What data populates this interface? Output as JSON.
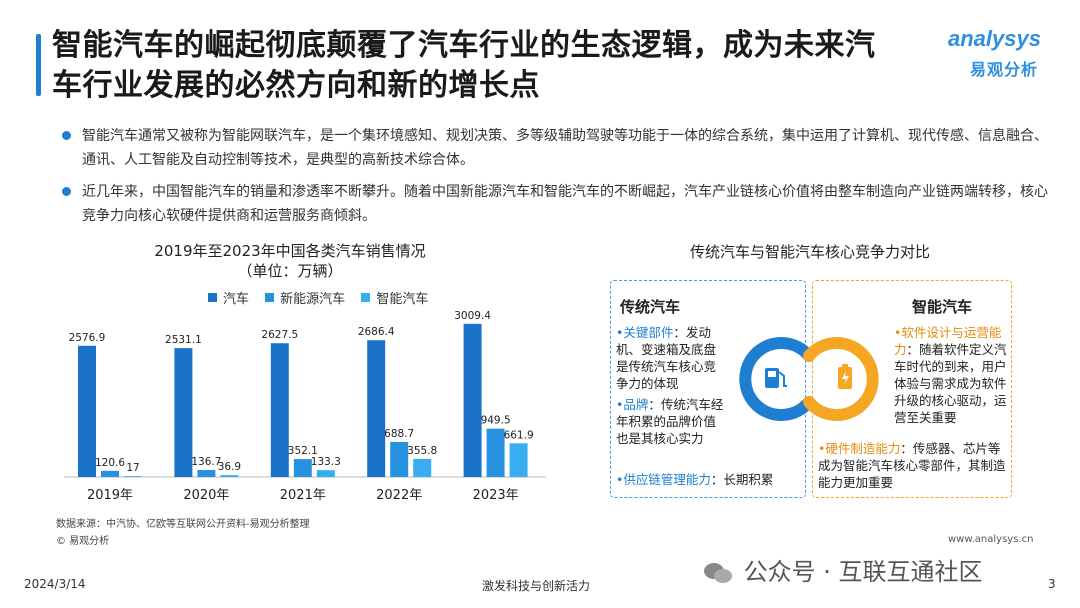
{
  "header": {
    "title_line1": "智能汽车的崛起彻底颠覆了汽车行业的生态逻辑，成为未来汽",
    "title_line2": "车行业发展的必然方向和新的增长点",
    "logo_en": "analysys",
    "logo_cn": "易观分析",
    "brand_color": "#1e7fd2"
  },
  "bullets": [
    {
      "text": "智能汽车通常又被称为智能网联汽车，是一个集环境感知、规划决策、多等级辅助驾驶等功能于一体的综合系统，集中运用了计算机、现代传感、信息融合、通讯、人工智能及自动控制等技术，是典型的高新技术综合体。"
    },
    {
      "text": "近几年来，中国智能汽车的销量和渗透率不断攀升。随着中国新能源汽车和智能汽车的不断崛起，汽车产业链核心价值将由整车制造向产业链两端转移，核心竞争力向核心软硬件提供商和运营服务商倾斜。"
    }
  ],
  "chart_data": {
    "type": "bar",
    "title": "2019年至2023年中国各类汽车销售情况",
    "subtitle": "（单位：万辆）",
    "categories": [
      "2019年",
      "2020年",
      "2021年",
      "2022年",
      "2023年"
    ],
    "series": [
      {
        "name": "汽车",
        "color": "#1a73c8",
        "values": [
          2576.9,
          2531.1,
          2627.5,
          2686.4,
          3009.4
        ]
      },
      {
        "name": "新能源汽车",
        "color": "#2793e0",
        "values": [
          120.6,
          136.7,
          352.1,
          688.7,
          949.5
        ]
      },
      {
        "name": "智能汽车",
        "color": "#38aef0",
        "values": [
          17,
          36.9,
          133.3,
          355.8,
          661.9
        ]
      }
    ],
    "ylim": [
      0,
      3300
    ],
    "grid": false,
    "legend": "top"
  },
  "chart_labels": [
    [
      "2576.9",
      "120.6",
      "17"
    ],
    [
      "2531.1",
      "136.7",
      "36.9"
    ],
    [
      "2627.5",
      "352.1",
      "133.3"
    ],
    [
      "2686.4",
      "688.7",
      "355.8"
    ],
    [
      "3009.4",
      "949.5",
      "661.9"
    ]
  ],
  "source": "数据来源：中汽协、亿欧等互联网公开资料-易观分析整理",
  "copyright": "© 易观分析",
  "comparison": {
    "title": "传统汽车与智能汽车核心竞争力对比",
    "left": {
      "heading": "传统汽车",
      "items": [
        {
          "key": "•关键部件",
          "rest": "：发动机、变速箱及底盘是传统汽车核心竞争力的体现"
        },
        {
          "key": "•品牌",
          "rest": "：传统汽车经年积累的品牌价值也是其核心实力"
        },
        {
          "key": "•供应链管理能力",
          "rest": "：长期积累"
        }
      ]
    },
    "right": {
      "heading": "智能汽车",
      "items": [
        {
          "key": "•软件设计与运营能力",
          "rest": "：随着软件定义汽车时代的到来，用户体验与需求成为软件升级的核心驱动，运营至关重要"
        },
        {
          "key": "•硬件制造能力",
          "rest": "：传感器、芯片等成为智能汽车核心零部件，其制造能力更加重要"
        }
      ]
    },
    "left_color": "#1e7fd2",
    "right_color": "#f5a623",
    "left_icon": "fuel-pump-icon",
    "right_icon": "battery-charge-icon"
  },
  "footer": {
    "date": "2024/3/14",
    "center": "激发科技与创新活力",
    "page": "3",
    "website": "www.analysys.cn",
    "watermark": "公众号 · 互联互通社区"
  }
}
